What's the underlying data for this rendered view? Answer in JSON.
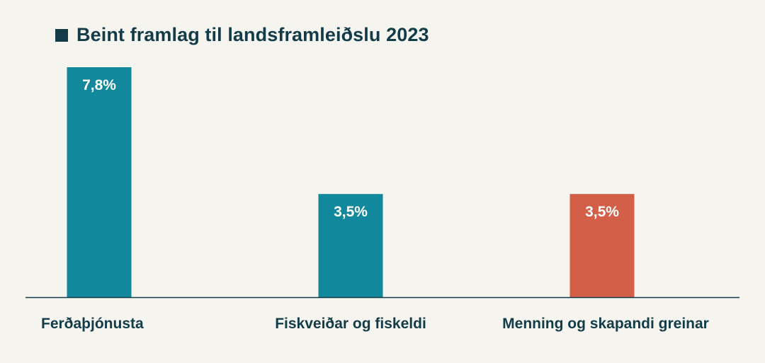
{
  "legend": {
    "label": "Beint framlag til landsframleiðslu 2023",
    "color": "#133c48"
  },
  "colors": {
    "background": "#f5f4ef",
    "text": "#133c48",
    "bar_label": "#ffffff",
    "axis": "#133c48"
  },
  "chart_data": {
    "type": "bar",
    "title": "",
    "xlabel": "",
    "ylabel": "",
    "ylim": [
      0,
      9
    ],
    "grid": false,
    "legend_position": "top-left",
    "categories": [
      "Ferðaþjónusta",
      "Fiskveiðar og fiskeldi",
      "Menning og skapandi greinar"
    ],
    "series": [
      {
        "name": "Beint framlag til landsframleiðslu 2023",
        "values": [
          7.8,
          3.5,
          3.5
        ],
        "value_labels": [
          "7,8%",
          "3,5%",
          "3,5%"
        ],
        "colors": [
          "#11889b",
          "#11889b",
          "#d35f49"
        ]
      }
    ]
  }
}
